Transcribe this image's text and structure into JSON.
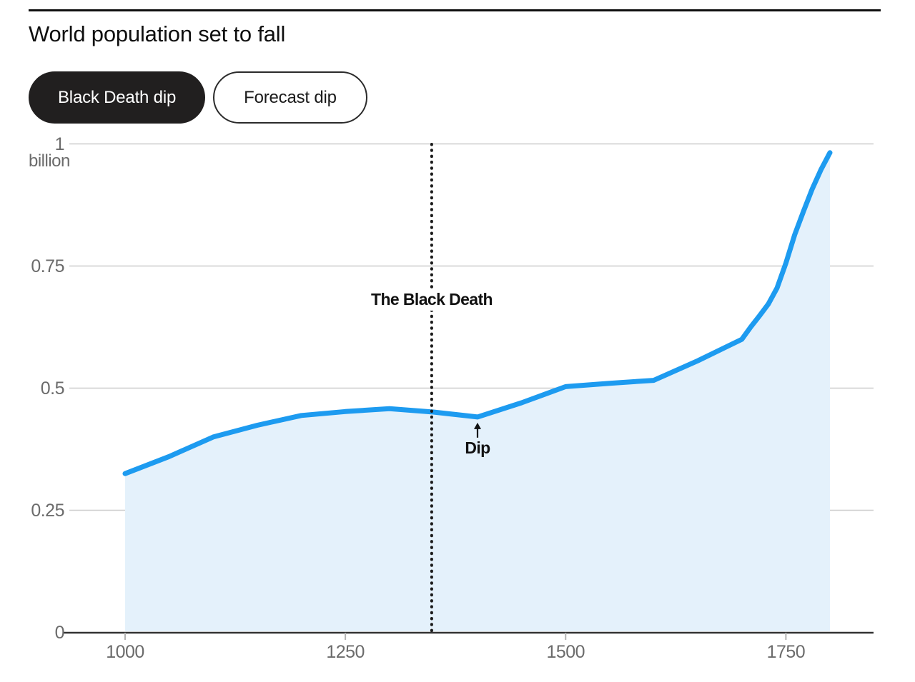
{
  "header": {
    "title": "World population set to fall"
  },
  "toggles": [
    {
      "id": "black-death-dip",
      "label": "Black Death dip",
      "active": true
    },
    {
      "id": "forecast-dip",
      "label": "Forecast dip",
      "active": false
    }
  ],
  "chart_data": {
    "type": "area",
    "title": "World population set to fall",
    "series_name": "World population",
    "unit_label": "billion",
    "x": [
      1000,
      1050,
      1100,
      1150,
      1200,
      1250,
      1300,
      1350,
      1400,
      1450,
      1500,
      1550,
      1600,
      1650,
      1700,
      1710,
      1720,
      1730,
      1740,
      1750,
      1760,
      1770,
      1780,
      1790,
      1800
    ],
    "values": [
      0.325,
      0.36,
      0.4,
      0.424,
      0.444,
      0.452,
      0.458,
      0.451,
      0.441,
      0.47,
      0.503,
      0.51,
      0.516,
      0.556,
      0.6,
      0.625,
      0.648,
      0.672,
      0.705,
      0.756,
      0.814,
      0.862,
      0.908,
      0.948,
      0.982
    ],
    "xlim": [
      1000,
      1800
    ],
    "ylim": [
      0,
      1
    ],
    "grid": "horizontal",
    "legend": "none",
    "yticks": [
      {
        "value": 1,
        "label": "1"
      },
      {
        "value": 0.75,
        "label": "0.75"
      },
      {
        "value": 0.5,
        "label": "0.5"
      },
      {
        "value": 0.25,
        "label": "0.25"
      },
      {
        "value": 0,
        "label": "0"
      }
    ],
    "xticks": [
      {
        "value": 1000,
        "label": "1000"
      },
      {
        "value": 1250,
        "label": "1250"
      },
      {
        "value": 1500,
        "label": "1500"
      },
      {
        "value": 1750,
        "label": "1750"
      }
    ],
    "annotations": {
      "vline": {
        "x": 1348,
        "label": "The Black Death"
      },
      "dip": {
        "x": 1400,
        "y": 0.441,
        "label": "Dip"
      }
    },
    "colors": {
      "line": "#1d9bf0",
      "fill": "#e4f1fb",
      "grid": "#cccccc",
      "axis": "#333333",
      "tick": "#b3b3b3",
      "tick_label": "#6b6b6b",
      "annotation": "#111111",
      "vline": "#1a1a1a"
    }
  }
}
